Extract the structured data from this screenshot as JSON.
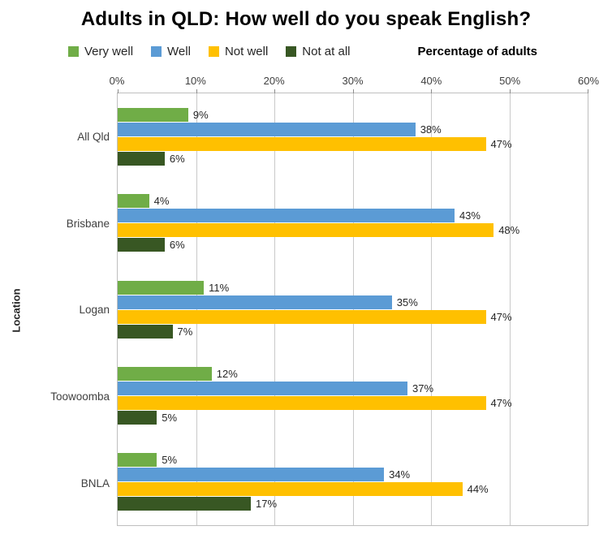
{
  "chart_data": {
    "type": "bar",
    "orientation": "horizontal",
    "title": "Adults in QLD: How well do you speak English?",
    "xlabel": "Percentage of adults",
    "ylabel": "Location",
    "xlim": [
      0,
      60
    ],
    "x_ticks": [
      "0%",
      "10%",
      "20%",
      "30%",
      "40%",
      "50%",
      "60%"
    ],
    "grid": "vertical",
    "legend_position": "top-left",
    "categories": [
      "All Qld",
      "Brisbane",
      "Logan",
      "Toowoomba",
      "BNLA"
    ],
    "series": [
      {
        "name": "Very well",
        "color": "#70AD47",
        "values": [
          9,
          4,
          11,
          12,
          5
        ]
      },
      {
        "name": "Well",
        "color": "#5B9BD5",
        "values": [
          38,
          43,
          35,
          37,
          34
        ]
      },
      {
        "name": "Not well",
        "color": "#FFC000",
        "values": [
          47,
          48,
          47,
          47,
          44
        ]
      },
      {
        "name": "Not at all",
        "color": "#385723",
        "values": [
          6,
          6,
          7,
          5,
          17
        ]
      }
    ],
    "value_label_suffix": "%"
  }
}
